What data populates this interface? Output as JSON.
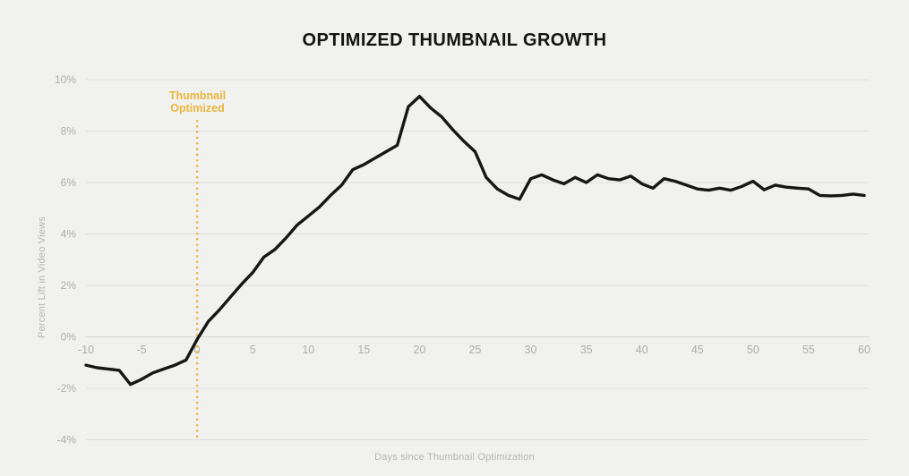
{
  "page": {
    "background": "#f1f1ef"
  },
  "chart_data": {
    "type": "line",
    "title": "OPTIMIZED THUMBNAIL GROWTH",
    "xlabel": "Days since Thumbnail Optimization",
    "ylabel": "Percent Lift in Video Views",
    "xlim": [
      -10,
      60
    ],
    "ylim": [
      -4,
      10
    ],
    "x_ticks": [
      -10,
      -5,
      0,
      5,
      10,
      15,
      20,
      25,
      30,
      35,
      40,
      45,
      50,
      55,
      60
    ],
    "y_ticks": [
      10,
      8,
      6,
      4,
      2,
      0,
      -2,
      -4
    ],
    "y_tick_suffix": "%",
    "grid": "horizontal-only",
    "legend": "none",
    "series": [
      {
        "name": "percent-lift-in-video-views",
        "x": [
          -10,
          -9,
          -8,
          -7,
          -6,
          -5,
          -4,
          -3,
          -2,
          -1,
          0,
          1,
          2,
          3,
          4,
          5,
          6,
          7,
          8,
          9,
          10,
          11,
          12,
          13,
          14,
          15,
          16,
          17,
          18,
          19,
          20,
          21,
          22,
          23,
          24,
          25,
          26,
          27,
          28,
          29,
          30,
          31,
          32,
          33,
          34,
          35,
          36,
          37,
          38,
          39,
          40,
          41,
          42,
          43,
          44,
          45,
          46,
          47,
          48,
          49,
          50,
          51,
          52,
          53,
          54,
          55,
          56,
          57,
          58,
          59,
          60
        ],
        "values": [
          -1.1,
          -1.2,
          -1.25,
          -1.3,
          -1.85,
          -1.65,
          -1.4,
          -1.25,
          -1.1,
          -0.9,
          -0.1,
          0.6,
          1.05,
          1.55,
          2.05,
          2.5,
          3.1,
          3.4,
          3.85,
          4.35,
          4.7,
          5.05,
          5.5,
          5.9,
          6.5,
          6.7,
          6.95,
          7.2,
          7.45,
          8.95,
          9.35,
          8.9,
          8.55,
          8.05,
          7.6,
          7.2,
          6.2,
          5.75,
          5.5,
          5.35,
          6.15,
          6.3,
          6.1,
          5.95,
          6.2,
          6.0,
          6.3,
          6.15,
          6.1,
          6.25,
          5.95,
          5.78,
          6.15,
          6.05,
          5.9,
          5.75,
          5.7,
          5.78,
          5.7,
          5.85,
          6.05,
          5.72,
          5.9,
          5.82,
          5.78,
          5.75,
          5.5,
          5.48,
          5.5,
          5.55,
          5.5
        ]
      }
    ],
    "annotation": {
      "label_line1": "Thumbnail",
      "label_line2": "Optimized",
      "x": 0,
      "style": "dotted-vertical-line"
    },
    "colors": {
      "line": "#161616",
      "grid": "#dfdedc",
      "zero_grid": "#d5d4d2",
      "tick_label": "#aeadaa",
      "axis_label": "#b5b4b1",
      "title": "#131313",
      "annotation": "#e9b63e"
    }
  }
}
